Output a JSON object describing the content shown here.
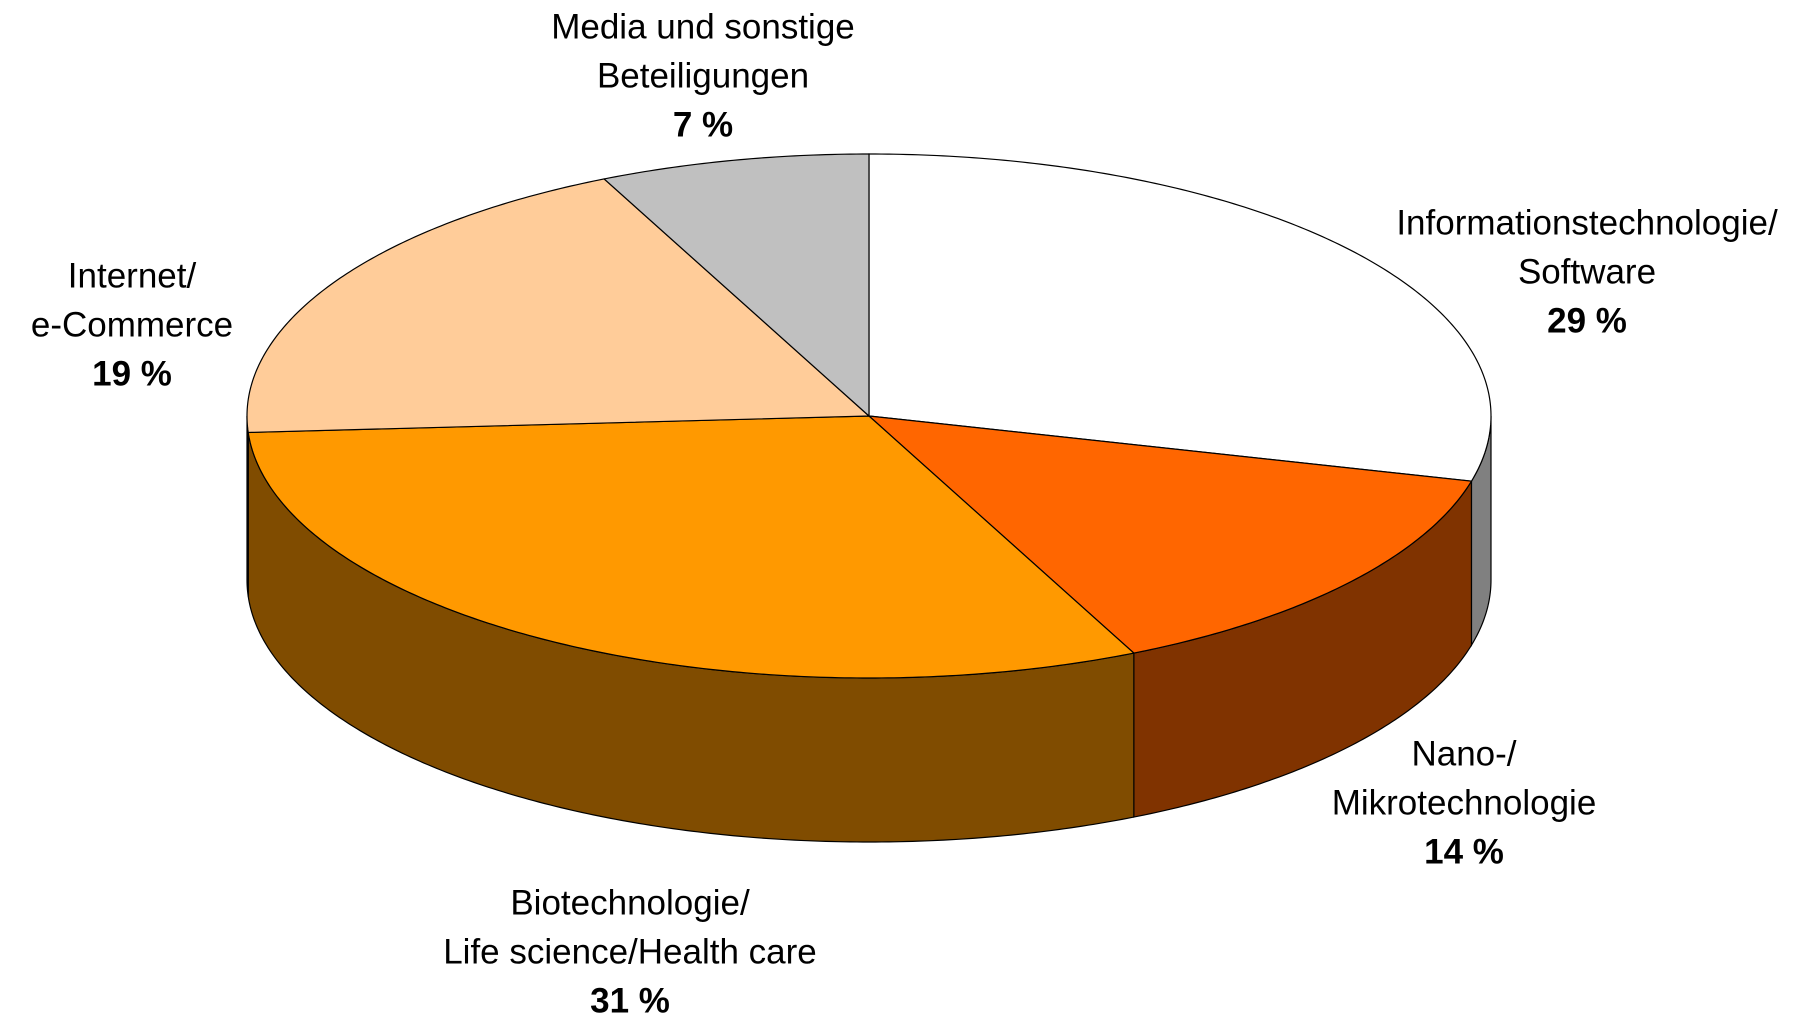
{
  "chart_data": {
    "type": "pie3d",
    "categories": [
      [
        "Informationstechnologie/",
        "Software"
      ],
      [
        "Nano-/",
        "Mikrotechnologie"
      ],
      [
        "Biotechnologie/",
        "Life science/Health care"
      ],
      [
        "Internet/",
        "e-Commerce"
      ],
      [
        "Media und sonstige",
        "Beteiligungen"
      ]
    ],
    "values": [
      29,
      14,
      31,
      19,
      7
    ],
    "value_labels": [
      "29 %",
      "14 %",
      "31 %",
      "19 %",
      "7 %"
    ],
    "colors": [
      "#ffffff",
      "#ff6600",
      "#ff9900",
      "#ffcc99",
      "#c0c0c0"
    ],
    "side_colors": [
      "#808080",
      "#803300",
      "#804c00",
      "#806640",
      "#606060"
    ]
  }
}
